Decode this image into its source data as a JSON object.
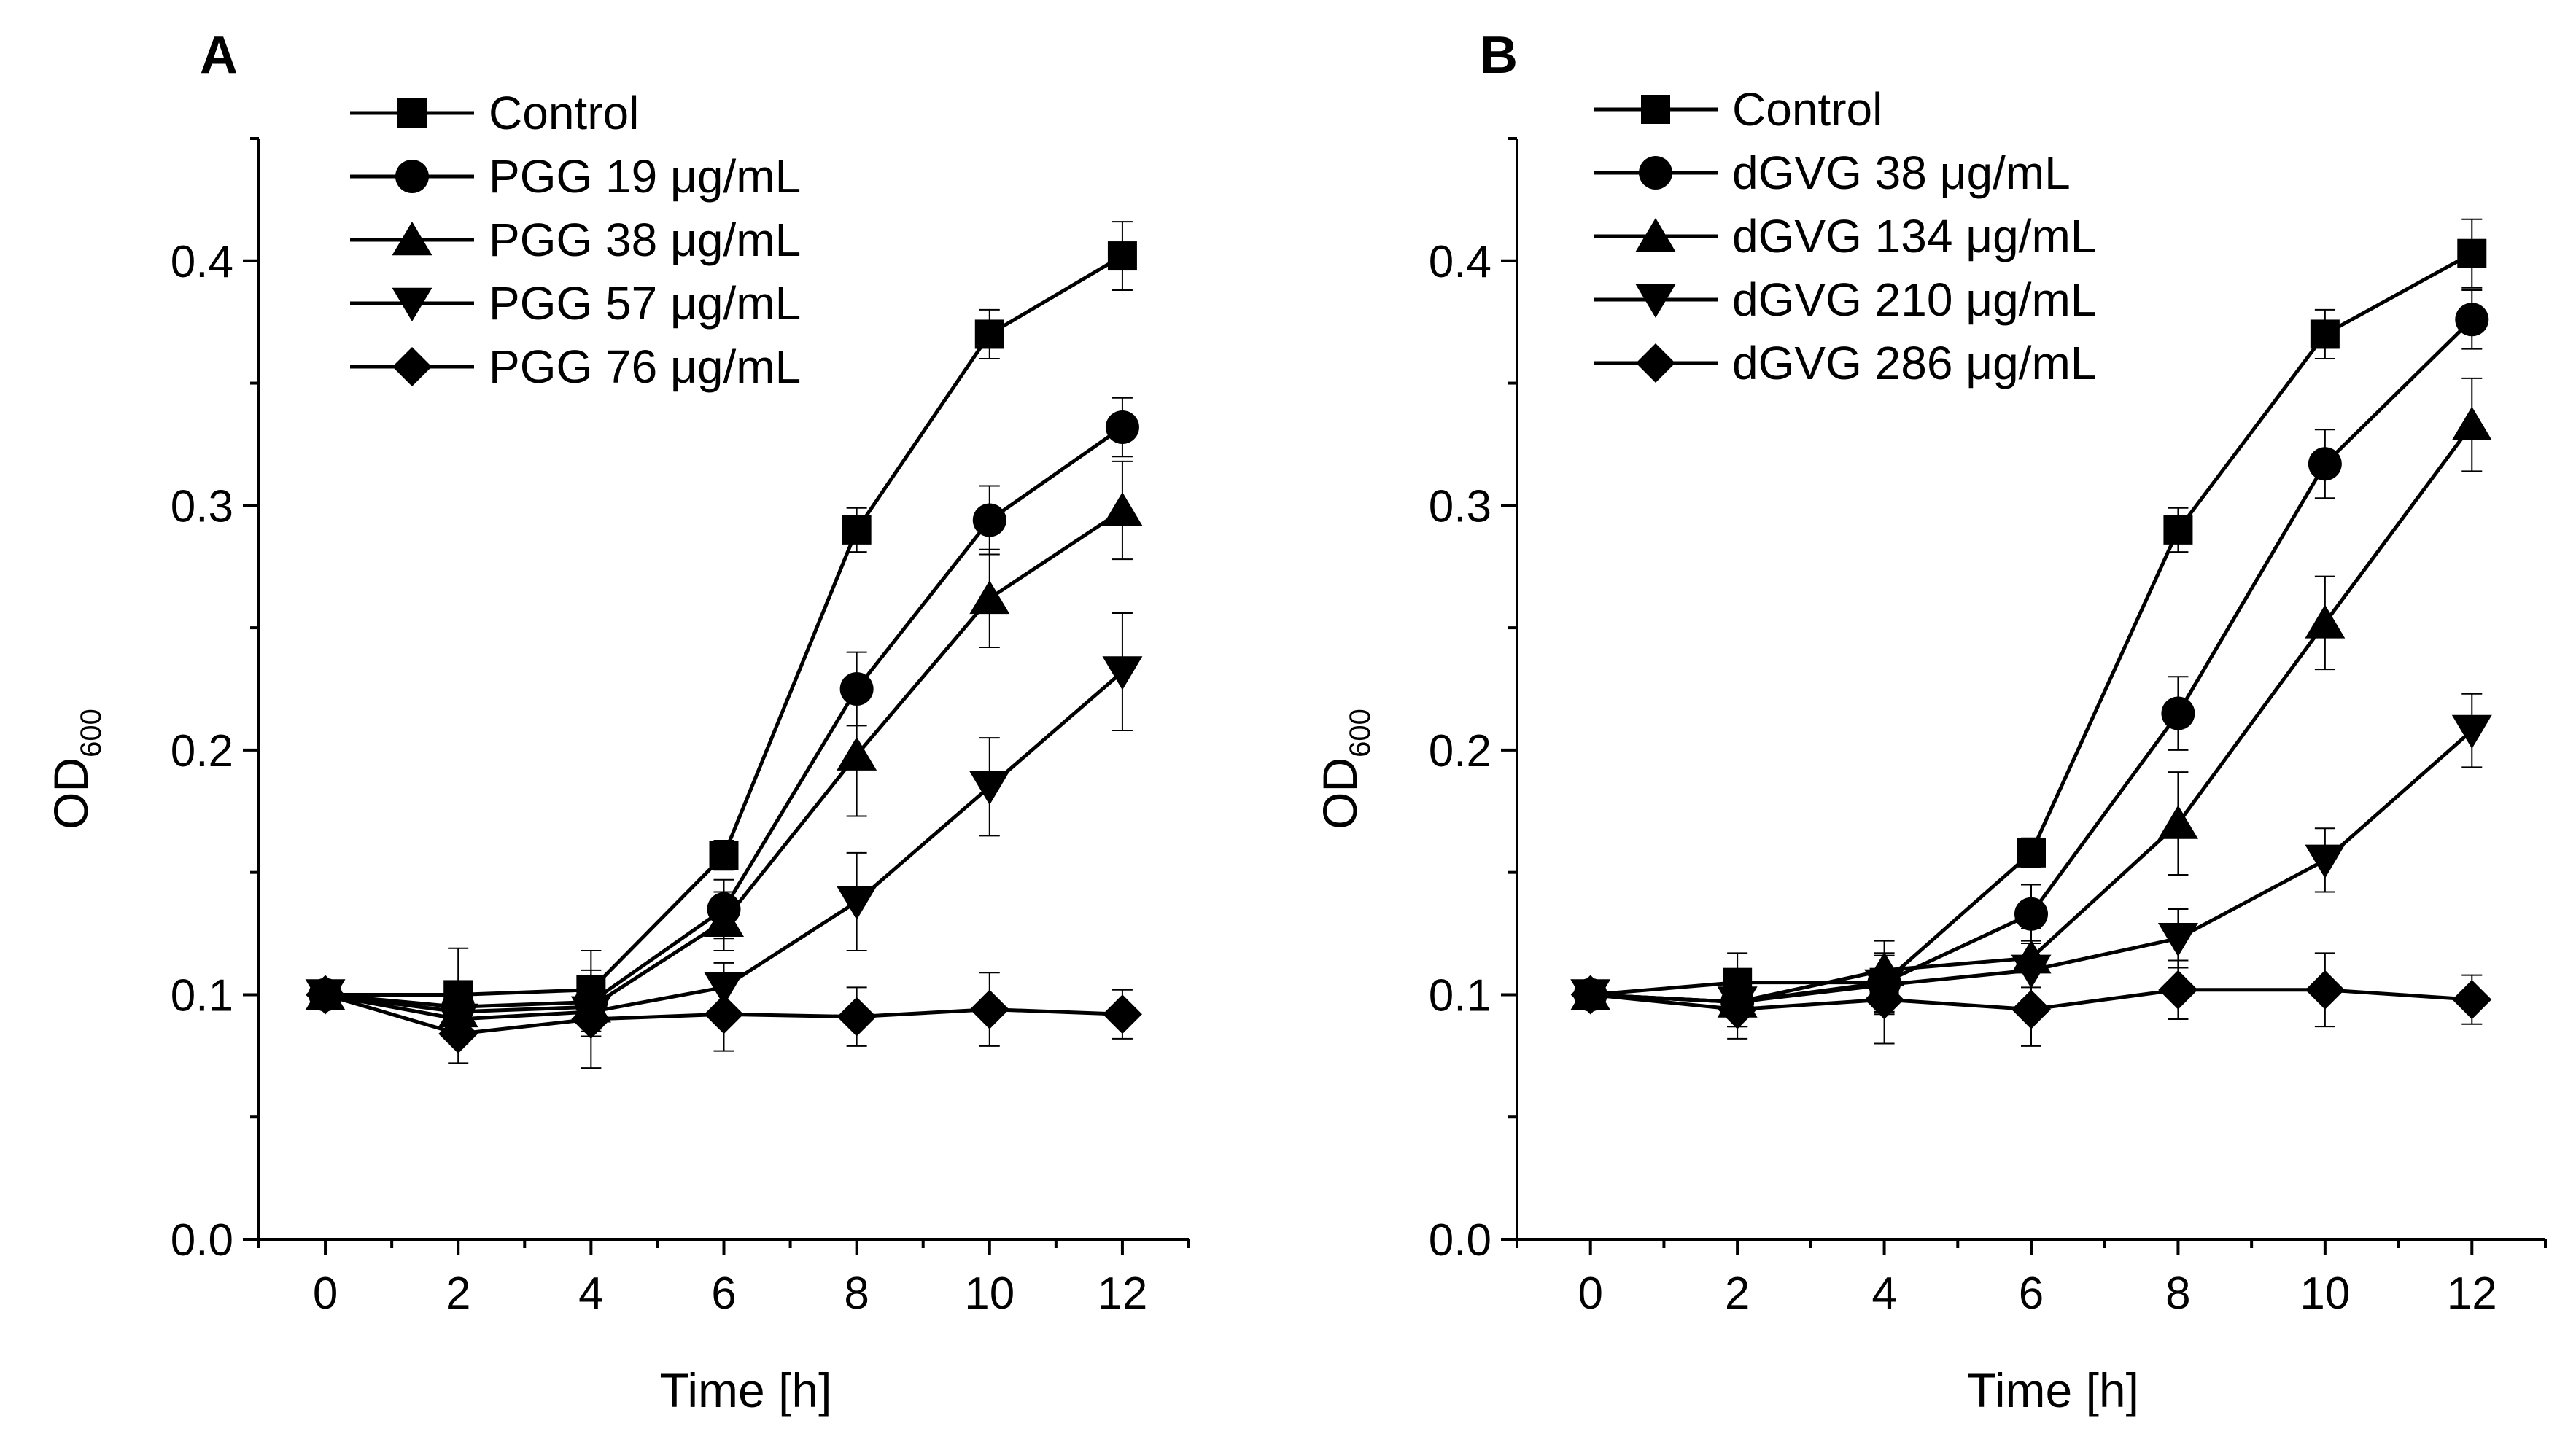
{
  "chart_data": [
    {
      "panel_label": "A",
      "type": "line",
      "xlabel": "Time [h]",
      "ylabel_main": "OD",
      "ylabel_sub": "600",
      "xlim": [
        -1,
        13
      ],
      "ylim": [
        0.0,
        0.45
      ],
      "x": [
        0,
        2,
        4,
        6,
        8,
        10,
        12
      ],
      "xticks": [
        "0",
        "2",
        "4",
        "6",
        "8",
        "10",
        "12"
      ],
      "yticks": [
        "0.0",
        "0.1",
        "0.2",
        "0.3",
        "0.4"
      ],
      "ytick_values": [
        0.0,
        0.1,
        0.2,
        0.3,
        0.4
      ],
      "legend_position": "top-left",
      "series": [
        {
          "name": "Control",
          "marker": "square",
          "values": [
            0.1,
            0.1,
            0.102,
            0.157,
            0.29,
            0.37,
            0.402
          ],
          "errors": [
            0.004,
            0.019,
            0.016,
            0.006,
            0.009,
            0.01,
            0.014
          ]
        },
        {
          "name": "PGG 19 μg/mL",
          "marker": "circle",
          "values": [
            0.1,
            0.095,
            0.097,
            0.135,
            0.225,
            0.294,
            0.332
          ],
          "errors": [
            0.004,
            0.01,
            0.01,
            0.012,
            0.015,
            0.014,
            0.012
          ]
        },
        {
          "name": "PGG 38 μg/mL",
          "marker": "triangle-up",
          "values": [
            0.1,
            0.093,
            0.095,
            0.13,
            0.198,
            0.262,
            0.298
          ],
          "errors": [
            0.004,
            0.01,
            0.01,
            0.012,
            0.025,
            0.02,
            0.02
          ]
        },
        {
          "name": "PGG 57 μg/mL",
          "marker": "triangle-down",
          "values": [
            0.1,
            0.09,
            0.093,
            0.103,
            0.138,
            0.185,
            0.232
          ],
          "errors": [
            0.004,
            0.01,
            0.01,
            0.01,
            0.02,
            0.02,
            0.024
          ]
        },
        {
          "name": "PGG 76 μg/mL",
          "marker": "diamond",
          "values": [
            0.1,
            0.084,
            0.09,
            0.092,
            0.091,
            0.094,
            0.092
          ],
          "errors": [
            0.004,
            0.012,
            0.02,
            0.015,
            0.012,
            0.015,
            0.01
          ]
        }
      ]
    },
    {
      "panel_label": "B",
      "type": "line",
      "xlabel": "Time [h]",
      "ylabel_main": "OD",
      "ylabel_sub": "600",
      "xlim": [
        -1,
        13
      ],
      "ylim": [
        0.0,
        0.45
      ],
      "x": [
        0,
        2,
        4,
        6,
        8,
        10,
        12
      ],
      "xticks": [
        "0",
        "2",
        "4",
        "6",
        "8",
        "10",
        "12"
      ],
      "yticks": [
        "0.0",
        "0.1",
        "0.2",
        "0.3",
        "0.4"
      ],
      "ytick_values": [
        0.0,
        0.1,
        0.2,
        0.3,
        0.4
      ],
      "legend_position": "top-left",
      "series": [
        {
          "name": "Control",
          "marker": "square",
          "values": [
            0.1,
            0.105,
            0.105,
            0.158,
            0.29,
            0.37,
            0.403
          ],
          "errors": [
            0.004,
            0.012,
            0.012,
            0.006,
            0.009,
            0.01,
            0.014
          ]
        },
        {
          "name": "dGVG 38 μg/mL",
          "marker": "circle",
          "values": [
            0.1,
            0.097,
            0.105,
            0.133,
            0.215,
            0.317,
            0.376
          ],
          "errors": [
            0.004,
            0.01,
            0.012,
            0.012,
            0.015,
            0.014,
            0.012
          ]
        },
        {
          "name": "dGVG 134 μg/mL",
          "marker": "triangle-up",
          "values": [
            0.1,
            0.097,
            0.11,
            0.115,
            0.17,
            0.252,
            0.333
          ],
          "errors": [
            0.004,
            0.01,
            0.012,
            0.012,
            0.021,
            0.019,
            0.019
          ]
        },
        {
          "name": "dGVG 210 μg/mL",
          "marker": "triangle-down",
          "values": [
            0.1,
            0.097,
            0.104,
            0.11,
            0.123,
            0.155,
            0.208
          ],
          "errors": [
            0.004,
            0.01,
            0.012,
            0.012,
            0.012,
            0.013,
            0.015
          ]
        },
        {
          "name": "dGVG 286 μg/mL",
          "marker": "diamond",
          "values": [
            0.1,
            0.094,
            0.098,
            0.094,
            0.102,
            0.102,
            0.098
          ],
          "errors": [
            0.004,
            0.012,
            0.018,
            0.015,
            0.012,
            0.015,
            0.01
          ]
        }
      ]
    }
  ]
}
